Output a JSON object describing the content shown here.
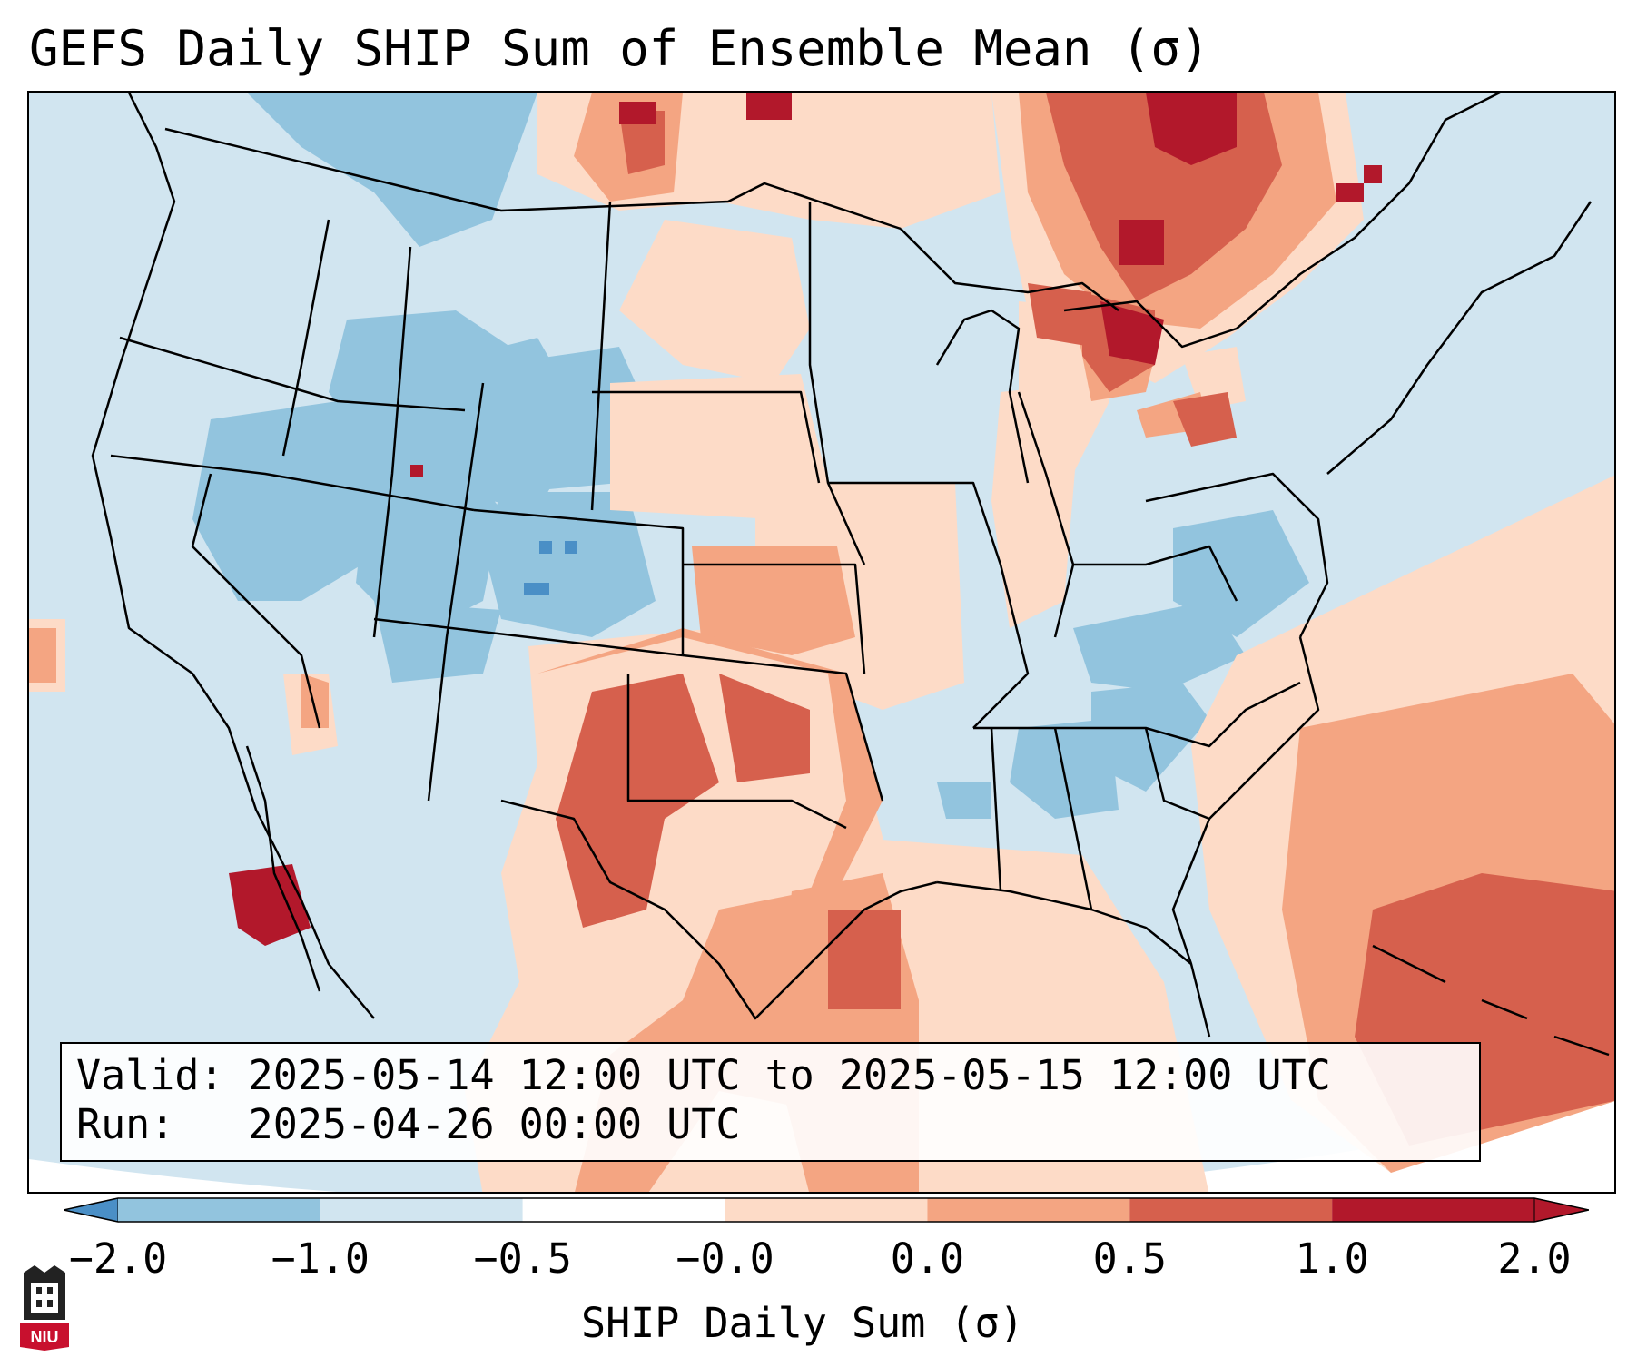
{
  "title": "GEFS Daily SHIP Sum of Ensemble Mean (σ)",
  "info": {
    "valid_label": "Valid:",
    "valid_value": "2025-05-14 12:00 UTC to 2025-05-15 12:00 UTC",
    "run_label": "Run:",
    "run_value": "2025-04-26 00:00 UTC"
  },
  "colorbar": {
    "label": "SHIP Daily Sum (σ)",
    "ticks": [
      "−2.0",
      "−1.0",
      "−0.5",
      "−0.0",
      "0.0",
      "0.5",
      "1.0",
      "2.0"
    ],
    "colors": [
      "#4a8fc6",
      "#92c4de",
      "#d1e5f0",
      "#ffffff",
      "#fddbc7",
      "#f4a582",
      "#d6604d",
      "#b2182b"
    ],
    "extend": "both"
  },
  "logo": {
    "text": "NIU"
  },
  "legend_colors": {
    "ocean_background": "#d1e5f0",
    "neg_strong": "#92c4de",
    "neg_extreme": "#4a8fc6",
    "pos_weak": "#fddbc7",
    "pos_moderate": "#f4a582",
    "pos_strong": "#d6604d",
    "pos_extreme": "#b2182b",
    "boundaries": "#000000"
  }
}
